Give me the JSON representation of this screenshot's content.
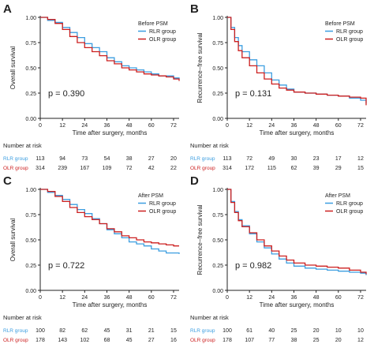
{
  "colors": {
    "rlr": "#3c9ee0",
    "olr": "#cc1f1f",
    "axis": "#222222",
    "text": "#222222"
  },
  "chart_data": [
    {
      "type": "line",
      "panel_label": "A",
      "title": "Before PSM",
      "xlabel": "Time after surgery, months",
      "ylabel": "Overall survival",
      "xlim": [
        0,
        75
      ],
      "ylim": [
        0,
        1.0
      ],
      "x_ticks": [
        0,
        12,
        24,
        36,
        48,
        60,
        72
      ],
      "y_ticks": [
        0.0,
        0.25,
        0.5,
        0.75,
        1.0
      ],
      "y_tick_labels": [
        "0.00",
        "0.25",
        "0.50",
        "0.75",
        "1.00"
      ],
      "p_value": "p = 0.390",
      "legend_title": "Before PSM",
      "series": [
        {
          "name": "RLR group",
          "color": "#3c9ee0",
          "x": [
            0,
            4,
            8,
            12,
            16,
            20,
            24,
            28,
            32,
            36,
            40,
            44,
            48,
            52,
            56,
            60,
            64,
            68,
            72,
            75
          ],
          "y": [
            1.0,
            0.97,
            0.95,
            0.9,
            0.85,
            0.8,
            0.74,
            0.7,
            0.66,
            0.6,
            0.56,
            0.52,
            0.5,
            0.48,
            0.46,
            0.44,
            0.42,
            0.42,
            0.4,
            0.39
          ]
        },
        {
          "name": "OLR group",
          "color": "#cc1f1f",
          "x": [
            0,
            4,
            8,
            12,
            16,
            20,
            24,
            28,
            32,
            36,
            40,
            44,
            48,
            52,
            56,
            60,
            64,
            68,
            72,
            75
          ],
          "y": [
            1.0,
            0.98,
            0.94,
            0.88,
            0.81,
            0.75,
            0.7,
            0.66,
            0.62,
            0.57,
            0.54,
            0.5,
            0.48,
            0.46,
            0.44,
            0.43,
            0.42,
            0.41,
            0.39,
            0.37
          ]
        }
      ],
      "risk_table": {
        "title": "Number at risk",
        "rows": [
          {
            "label": "RLR group",
            "color": "#3c9ee0",
            "values": [
              "113",
              "94",
              "73",
              "54",
              "38",
              "27",
              "20"
            ]
          },
          {
            "label": "OLR group",
            "color": "#cc1f1f",
            "values": [
              "314",
              "239",
              "167",
              "109",
              "72",
              "42",
              "22"
            ]
          }
        ]
      }
    },
    {
      "type": "line",
      "panel_label": "B",
      "title": "Before PSM",
      "xlabel": "Time after surgery, months",
      "ylabel": "Recurrence−free survival",
      "xlim": [
        0,
        75
      ],
      "ylim": [
        0,
        1.0
      ],
      "x_ticks": [
        0,
        12,
        24,
        36,
        48,
        60,
        72
      ],
      "y_ticks": [
        0.0,
        0.25,
        0.5,
        0.75,
        1.0
      ],
      "y_tick_labels": [
        "0.00",
        "0.25",
        "0.50",
        "0.75",
        "1.00"
      ],
      "p_value": "p = 0.131",
      "legend_title": "Before PSM",
      "series": [
        {
          "name": "RLR group",
          "color": "#3c9ee0",
          "x": [
            0,
            2,
            4,
            6,
            8,
            12,
            16,
            20,
            24,
            28,
            32,
            36,
            42,
            48,
            54,
            60,
            66,
            72,
            75
          ],
          "y": [
            1.0,
            0.9,
            0.8,
            0.72,
            0.66,
            0.58,
            0.52,
            0.45,
            0.38,
            0.33,
            0.29,
            0.26,
            0.25,
            0.24,
            0.23,
            0.22,
            0.2,
            0.18,
            0.15
          ]
        },
        {
          "name": "OLR group",
          "color": "#cc1f1f",
          "x": [
            0,
            2,
            4,
            6,
            8,
            12,
            16,
            20,
            24,
            28,
            32,
            36,
            42,
            48,
            54,
            60,
            66,
            72,
            75
          ],
          "y": [
            1.0,
            0.88,
            0.76,
            0.67,
            0.6,
            0.52,
            0.45,
            0.39,
            0.34,
            0.3,
            0.28,
            0.26,
            0.25,
            0.24,
            0.23,
            0.22,
            0.21,
            0.2,
            0.13
          ]
        }
      ],
      "risk_table": {
        "title": "Number at risk",
        "rows": [
          {
            "label": "RLR group",
            "color": "#3c9ee0",
            "values": [
              "113",
              "72",
              "49",
              "30",
              "23",
              "17",
              "12"
            ]
          },
          {
            "label": "OLR group",
            "color": "#cc1f1f",
            "values": [
              "314",
              "172",
              "115",
              "62",
              "39",
              "29",
              "15"
            ]
          }
        ]
      }
    },
    {
      "type": "line",
      "panel_label": "C",
      "title": "After PSM",
      "xlabel": "Time after surgery, months",
      "ylabel": "Overall survival",
      "xlim": [
        0,
        75
      ],
      "ylim": [
        0,
        1.0
      ],
      "x_ticks": [
        0,
        12,
        24,
        36,
        48,
        60,
        72
      ],
      "y_ticks": [
        0.0,
        0.25,
        0.5,
        0.75,
        1.0
      ],
      "y_tick_labels": [
        "0.00",
        "0.25",
        "0.50",
        "0.75",
        "1.00"
      ],
      "p_value": "p = 0.722",
      "legend_title": "After PSM",
      "series": [
        {
          "name": "RLR group",
          "color": "#3c9ee0",
          "x": [
            0,
            4,
            8,
            12,
            16,
            20,
            24,
            28,
            32,
            36,
            40,
            44,
            48,
            52,
            56,
            60,
            64,
            68,
            72,
            75
          ],
          "y": [
            1.0,
            0.97,
            0.94,
            0.9,
            0.85,
            0.8,
            0.76,
            0.71,
            0.66,
            0.6,
            0.56,
            0.52,
            0.48,
            0.46,
            0.44,
            0.41,
            0.39,
            0.37,
            0.37,
            0.36
          ]
        },
        {
          "name": "OLR group",
          "color": "#cc1f1f",
          "x": [
            0,
            4,
            8,
            12,
            16,
            20,
            24,
            28,
            32,
            36,
            40,
            44,
            48,
            52,
            56,
            60,
            64,
            68,
            72,
            75
          ],
          "y": [
            1.0,
            0.98,
            0.93,
            0.88,
            0.82,
            0.77,
            0.73,
            0.7,
            0.66,
            0.61,
            0.58,
            0.54,
            0.52,
            0.5,
            0.48,
            0.47,
            0.46,
            0.45,
            0.44,
            0.44
          ]
        }
      ],
      "risk_table": {
        "title": "Number at risk",
        "rows": [
          {
            "label": "RLR group",
            "color": "#3c9ee0",
            "values": [
              "100",
              "82",
              "62",
              "45",
              "31",
              "21",
              "15"
            ]
          },
          {
            "label": "OLR group",
            "color": "#cc1f1f",
            "values": [
              "178",
              "143",
              "102",
              "68",
              "45",
              "27",
              "16"
            ]
          }
        ]
      }
    },
    {
      "type": "line",
      "panel_label": "D",
      "title": "After PSM",
      "xlabel": "Time after surgery, months",
      "ylabel": "Recurrence−free survival",
      "xlim": [
        0,
        75
      ],
      "ylim": [
        0,
        1.0
      ],
      "x_ticks": [
        0,
        12,
        24,
        36,
        48,
        60,
        72
      ],
      "y_ticks": [
        0.0,
        0.25,
        0.5,
        0.75,
        1.0
      ],
      "y_tick_labels": [
        "0.00",
        "0.25",
        "0.50",
        "0.75",
        "1.00"
      ],
      "p_value": "p = 0.982",
      "legend_title": "After PSM",
      "series": [
        {
          "name": "RLR group",
          "color": "#3c9ee0",
          "x": [
            0,
            2,
            4,
            6,
            8,
            12,
            16,
            20,
            24,
            28,
            32,
            36,
            42,
            48,
            54,
            60,
            66,
            72,
            75
          ],
          "y": [
            1.0,
            0.88,
            0.78,
            0.7,
            0.64,
            0.56,
            0.48,
            0.42,
            0.36,
            0.31,
            0.27,
            0.24,
            0.22,
            0.21,
            0.2,
            0.19,
            0.18,
            0.17,
            0.15
          ]
        },
        {
          "name": "OLR group",
          "color": "#cc1f1f",
          "x": [
            0,
            2,
            4,
            6,
            8,
            12,
            16,
            20,
            24,
            28,
            32,
            36,
            42,
            48,
            54,
            60,
            66,
            72,
            75
          ],
          "y": [
            1.0,
            0.87,
            0.77,
            0.69,
            0.63,
            0.57,
            0.5,
            0.44,
            0.39,
            0.34,
            0.3,
            0.27,
            0.25,
            0.24,
            0.23,
            0.22,
            0.2,
            0.18,
            0.16
          ]
        }
      ],
      "risk_table": {
        "title": "Number at risk",
        "rows": [
          {
            "label": "RLR group",
            "color": "#3c9ee0",
            "values": [
              "100",
              "61",
              "40",
              "25",
              "20",
              "10",
              "10"
            ]
          },
          {
            "label": "OLR group",
            "color": "#cc1f1f",
            "values": [
              "178",
              "107",
              "77",
              "38",
              "25",
              "20",
              "12"
            ]
          }
        ]
      }
    }
  ]
}
